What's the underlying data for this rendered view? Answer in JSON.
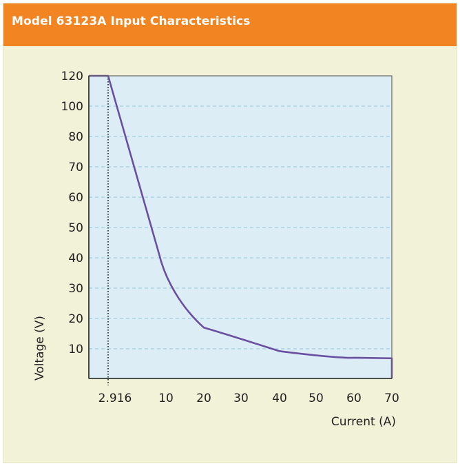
{
  "header": {
    "title": "Model 63123A Input Characteristics"
  },
  "colors": {
    "header_bg": "#f28421",
    "panel_bg": "#f2f2d9",
    "plot_bg": "#dcedf5",
    "curve": "#6a4fa0",
    "grid": "#8ec5db"
  },
  "chart_data": {
    "type": "line",
    "title": "Model 63123A Input Characteristics",
    "xlabel": "Current (A)",
    "ylabel": "Voltage (V)",
    "x_ticks": [
      "2.916",
      "10",
      "20",
      "30",
      "40",
      "50",
      "60",
      "70"
    ],
    "y_ticks": [
      "10",
      "20",
      "30",
      "40",
      "50",
      "60",
      "70",
      "80",
      "100",
      "120"
    ],
    "grid": "horizontal dashed",
    "marker": {
      "x": 2.916,
      "label": "2.916",
      "style": "dotted vertical line"
    },
    "series": [
      {
        "points": [
          {
            "x": 0,
            "y": 120
          },
          {
            "x": 2.916,
            "y": 120
          },
          {
            "x": 10,
            "y": 35
          },
          {
            "x": 12,
            "y": 28
          },
          {
            "x": 15,
            "y": 23
          },
          {
            "x": 20,
            "y": 17
          },
          {
            "x": 25,
            "y": 13.5
          },
          {
            "x": 30,
            "y": 11.5
          },
          {
            "x": 40,
            "y": 9.2
          },
          {
            "x": 50,
            "y": 7.8
          },
          {
            "x": 60,
            "y": 7
          },
          {
            "x": 65,
            "y": 6.8
          },
          {
            "x": 70,
            "y": 6.8
          },
          {
            "x": 70,
            "y": 0
          }
        ]
      }
    ]
  }
}
